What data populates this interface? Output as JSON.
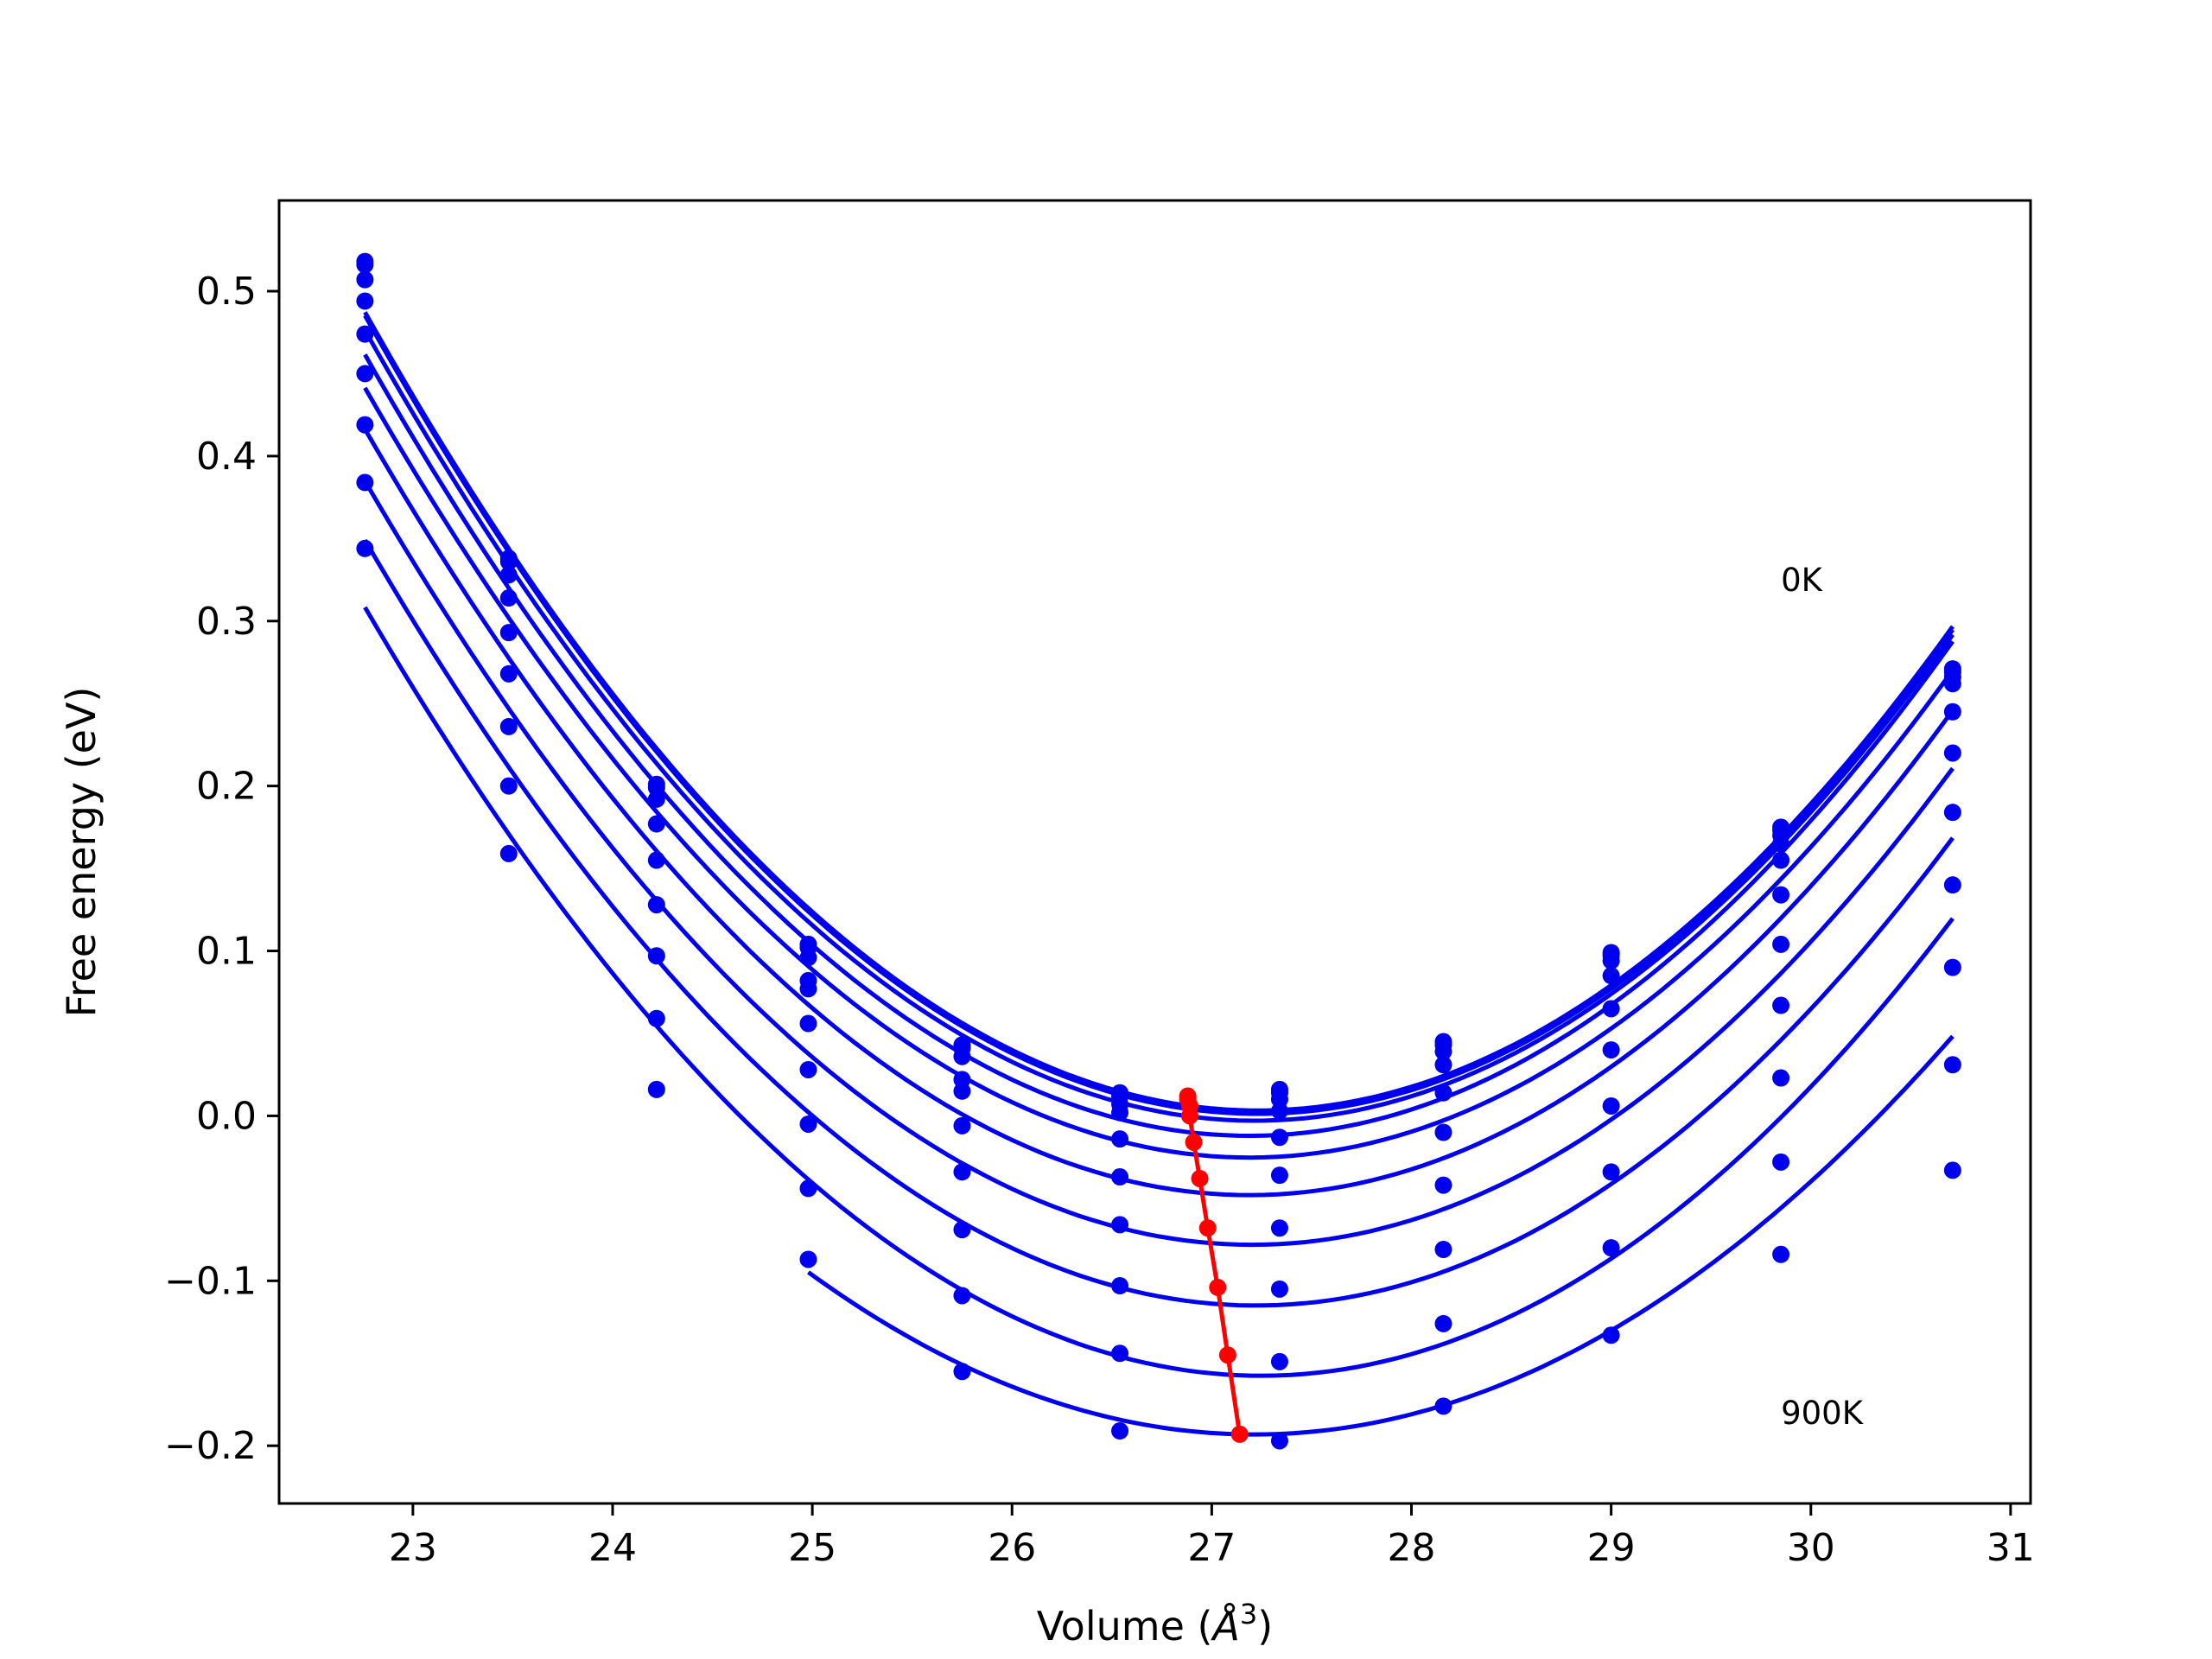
{
  "chart_data": {
    "type": "line",
    "title": "",
    "xlabel": "Volume (Å³)",
    "xlabel_main": "Volume (",
    "xlabel_unit": "Å",
    "xlabel_exp": "3",
    "xlabel_close": ")",
    "ylabel": "Free energy (eV)",
    "xlim": [
      22.33,
      31.1
    ],
    "ylim": [
      -0.235,
      0.555
    ],
    "xticks": [
      23,
      24,
      25,
      26,
      27,
      28,
      29,
      30,
      31
    ],
    "yticks": [
      -0.2,
      -0.1,
      0.0,
      0.1,
      0.2,
      0.3,
      0.4,
      0.5
    ],
    "ytick_labels": [
      "−0.2",
      "−0.1",
      "0.0",
      "0.1",
      "0.2",
      "0.3",
      "0.4",
      "0.5"
    ],
    "grid": false,
    "legend": "none",
    "annotations": [
      {
        "text": "0K",
        "x": 29.85,
        "y": 0.325
      },
      {
        "text": "900K",
        "x": 29.85,
        "y": -0.18
      }
    ],
    "x": [
      22.76,
      23.48,
      24.22,
      24.98,
      25.75,
      26.54,
      27.34,
      28.16,
      29.0,
      29.85,
      30.71
    ],
    "fit_color": "#0000ee",
    "minima_color": "#ff0000",
    "series": [
      {
        "points": [
          0.518,
          0.338,
          0.201,
          0.104,
          0.043,
          0.014,
          0.016,
          0.045,
          0.099,
          0.175,
          0.271
        ],
        "min_v": 26.88,
        "min_e": 0.012
      },
      {
        "points": [
          0.516,
          0.336,
          0.199,
          0.102,
          0.041,
          0.012,
          0.014,
          0.043,
          0.097,
          0.173,
          0.269
        ],
        "min_v": 26.88,
        "min_e": 0.01
      },
      {
        "points": [
          0.507,
          0.328,
          0.192,
          0.096,
          0.036,
          0.007,
          0.01,
          0.039,
          0.094,
          0.17,
          0.266
        ],
        "min_v": 26.89,
        "min_e": 0.006
      },
      {
        "points": [
          0.494,
          0.314,
          0.177,
          0.082,
          0.022,
          0.002,
          0.003,
          0.031,
          0.085,
          0.165,
          0.262
        ],
        "min_v": 26.89,
        "min_e": 0.0
      },
      {
        "points": [
          0.474,
          0.293,
          0.155,
          0.077,
          0.015,
          -0.014,
          -0.013,
          0.014,
          0.065,
          0.155,
          0.245
        ],
        "min_v": 26.91,
        "min_e": -0.016
      },
      {
        "points": [
          0.45,
          0.268,
          0.128,
          0.056,
          -0.006,
          -0.037,
          -0.036,
          -0.01,
          0.04,
          0.134,
          0.22
        ],
        "min_v": 26.94,
        "min_e": -0.038
      },
      {
        "points": [
          0.419,
          0.236,
          0.097,
          0.028,
          -0.034,
          -0.066,
          -0.068,
          -0.042,
          0.006,
          0.104,
          0.184
        ],
        "min_v": 26.98,
        "min_e": -0.068
      },
      {
        "points": [
          0.384,
          0.2,
          0.059,
          -0.005,
          -0.069,
          -0.103,
          -0.105,
          -0.081,
          -0.034,
          0.067,
          0.14
        ],
        "min_v": 27.03,
        "min_e": -0.104
      },
      {
        "points": [
          0.344,
          0.159,
          0.016,
          -0.044,
          -0.109,
          -0.144,
          -0.149,
          -0.126,
          -0.08,
          0.023,
          0.09
        ],
        "min_v": 27.08,
        "min_e": -0.145
      },
      {
        "points": [
          null,
          null,
          null,
          -0.087,
          -0.155,
          -0.191,
          -0.197,
          -0.176,
          -0.133,
          -0.028,
          0.031
        ],
        "min_v": 27.14,
        "min_e": -0.193
      },
      {
        "points": [
          null,
          null,
          null,
          null,
          null,
          null,
          null,
          null,
          null,
          -0.084,
          -0.033
        ],
        "min_v": null,
        "min_e": null
      }
    ]
  }
}
